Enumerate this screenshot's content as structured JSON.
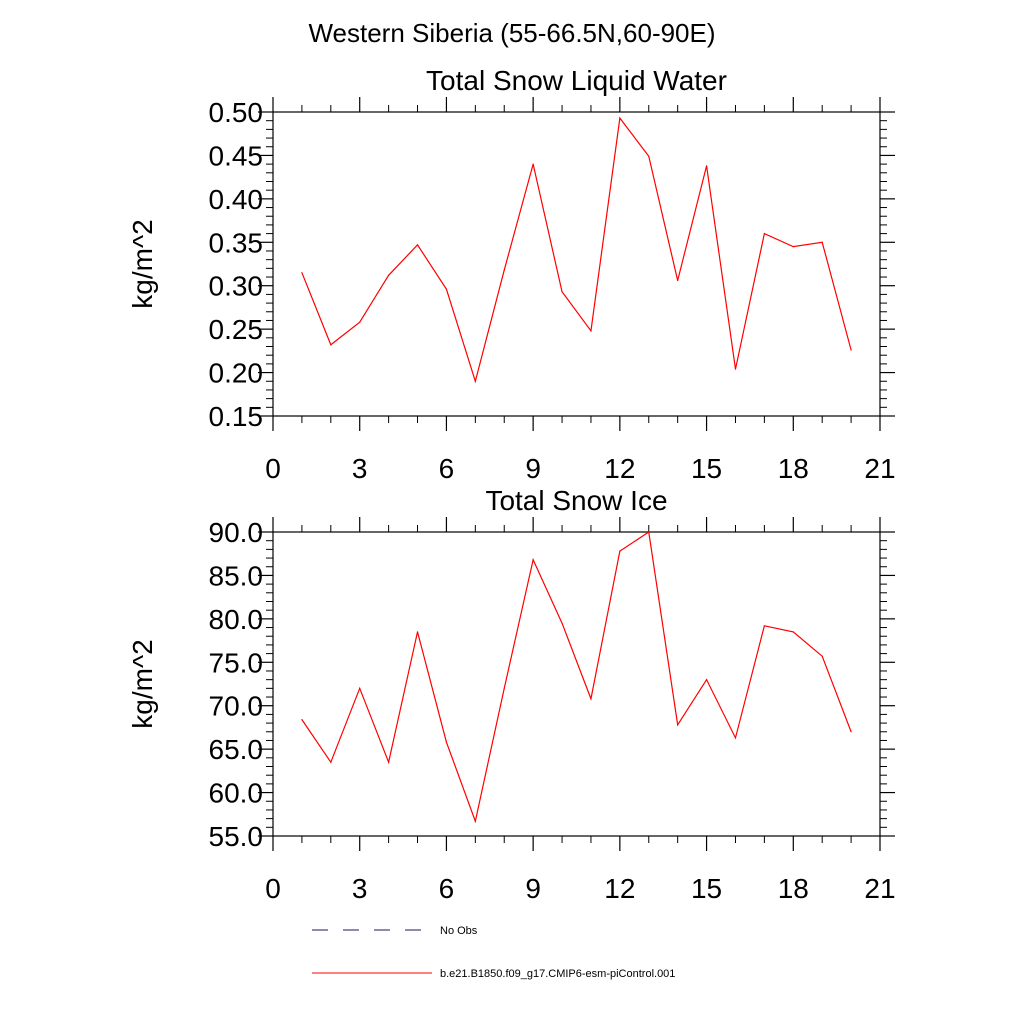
{
  "figure_title": "Western Siberia (55-66.5N,60-90E)",
  "legend": {
    "entries": [
      {
        "label": "No Obs",
        "color": "#1a1a66",
        "style": "dashed"
      },
      {
        "label": "b.e21.B1850.f09_g17.CMIP6-esm-piControl.001",
        "color": "#ff0000",
        "style": "solid"
      }
    ]
  },
  "chart_data": [
    {
      "type": "line",
      "title": "Total Snow Liquid Water",
      "xlabel": "",
      "ylabel": "kg/m^2",
      "xlim": [
        0,
        21
      ],
      "ylim": [
        0.15,
        0.5
      ],
      "xticks": [
        0,
        3,
        6,
        9,
        12,
        15,
        18,
        21
      ],
      "xtick_labels": [
        "0",
        "3",
        "6",
        "9",
        "12",
        "15",
        "18",
        "21"
      ],
      "yticks": [
        0.15,
        0.2,
        0.25,
        0.3,
        0.35,
        0.4,
        0.45,
        0.5
      ],
      "ytick_labels": [
        "0.15",
        "0.20",
        "0.25",
        "0.30",
        "0.35",
        "0.40",
        "0.45",
        "0.50"
      ],
      "grid": false,
      "series": [
        {
          "name": "b.e21.B1850.f09_g17.CMIP6-esm-piControl.001",
          "color": "#ff0000",
          "x": [
            1,
            2,
            3,
            4,
            5,
            6,
            7,
            8,
            9,
            10,
            11,
            12,
            13,
            14,
            15,
            16,
            17,
            18,
            19,
            20
          ],
          "y": [
            0.315,
            0.232,
            0.258,
            0.312,
            0.347,
            0.296,
            0.19,
            0.318,
            0.44,
            0.293,
            0.248,
            0.493,
            0.449,
            0.306,
            0.438,
            0.204,
            0.36,
            0.345,
            0.35,
            0.226
          ]
        }
      ]
    },
    {
      "type": "line",
      "title": "Total Snow Ice",
      "xlabel": "",
      "ylabel": "kg/m^2",
      "xlim": [
        0,
        21
      ],
      "ylim": [
        55,
        90
      ],
      "xticks": [
        0,
        3,
        6,
        9,
        12,
        15,
        18,
        21
      ],
      "xtick_labels": [
        "0",
        "3",
        "6",
        "9",
        "12",
        "15",
        "18",
        "21"
      ],
      "yticks": [
        55,
        60,
        65,
        70,
        75,
        80,
        85,
        90
      ],
      "ytick_labels": [
        "55.0",
        "60.0",
        "65.0",
        "70.0",
        "75.0",
        "80.0",
        "85.0",
        "90.0"
      ],
      "grid": false,
      "series": [
        {
          "name": "b.e21.B1850.f09_g17.CMIP6-esm-piControl.001",
          "color": "#ff0000",
          "x": [
            1,
            2,
            3,
            4,
            5,
            6,
            7,
            8,
            9,
            10,
            11,
            12,
            13,
            14,
            15,
            16,
            17,
            18,
            19,
            20
          ],
          "y": [
            68.4,
            63.5,
            72.0,
            63.5,
            78.5,
            65.8,
            56.7,
            72.0,
            86.8,
            79.5,
            70.8,
            87.8,
            90.0,
            67.8,
            73.0,
            66.3,
            79.2,
            78.5,
            75.7,
            67.0
          ]
        }
      ]
    }
  ]
}
